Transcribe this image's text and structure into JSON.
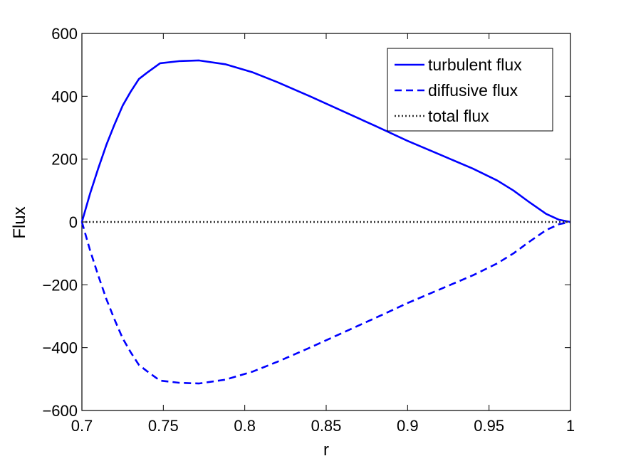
{
  "chart_data": {
    "type": "line",
    "title": "",
    "xlabel": "r",
    "ylabel": "Flux",
    "xlim": [
      0.7,
      1.0
    ],
    "ylim": [
      -600,
      600
    ],
    "xticks": [
      0.7,
      0.75,
      0.8,
      0.85,
      0.9,
      0.95,
      1.0
    ],
    "xtick_labels": [
      "0.7",
      "0.75",
      "0.8",
      "0.85",
      "0.9",
      "0.95",
      "1"
    ],
    "yticks": [
      -600,
      -400,
      -200,
      0,
      200,
      400,
      600
    ],
    "ytick_labels": [
      "−600",
      "−400",
      "−200",
      "0",
      "200",
      "400",
      "600"
    ],
    "grid": false,
    "legend_position": "top-right",
    "series": [
      {
        "name": "turbulent flux",
        "color": "#0000ff",
        "style": "solid",
        "x": [
          0.7,
          0.705,
          0.71,
          0.715,
          0.72,
          0.725,
          0.73,
          0.735,
          0.74,
          0.748,
          0.76,
          0.772,
          0.788,
          0.805,
          0.82,
          0.84,
          0.86,
          0.88,
          0.9,
          0.92,
          0.94,
          0.955,
          0.965,
          0.975,
          0.985,
          0.993,
          1.0
        ],
        "y": [
          0,
          90,
          170,
          245,
          310,
          370,
          415,
          455,
          475,
          505,
          512,
          514,
          502,
          476,
          445,
          400,
          353,
          306,
          258,
          214,
          170,
          132,
          100,
          62,
          26,
          7,
          0
        ]
      },
      {
        "name": "diffusive flux",
        "color": "#0000ff",
        "style": "dashed",
        "x": [
          0.7,
          0.705,
          0.71,
          0.715,
          0.72,
          0.725,
          0.73,
          0.735,
          0.74,
          0.748,
          0.76,
          0.772,
          0.788,
          0.805,
          0.82,
          0.84,
          0.86,
          0.88,
          0.9,
          0.92,
          0.94,
          0.955,
          0.965,
          0.975,
          0.985,
          0.993,
          1.0
        ],
        "y": [
          0,
          -90,
          -170,
          -245,
          -310,
          -370,
          -415,
          -455,
          -475,
          -505,
          -512,
          -514,
          -502,
          -476,
          -445,
          -400,
          -353,
          -306,
          -258,
          -214,
          -170,
          -132,
          -100,
          -62,
          -26,
          -7,
          0
        ]
      },
      {
        "name": "total flux",
        "color": "#333333",
        "style": "dotted",
        "x": [
          0.7,
          1.0
        ],
        "y": [
          0,
          0
        ]
      }
    ]
  }
}
